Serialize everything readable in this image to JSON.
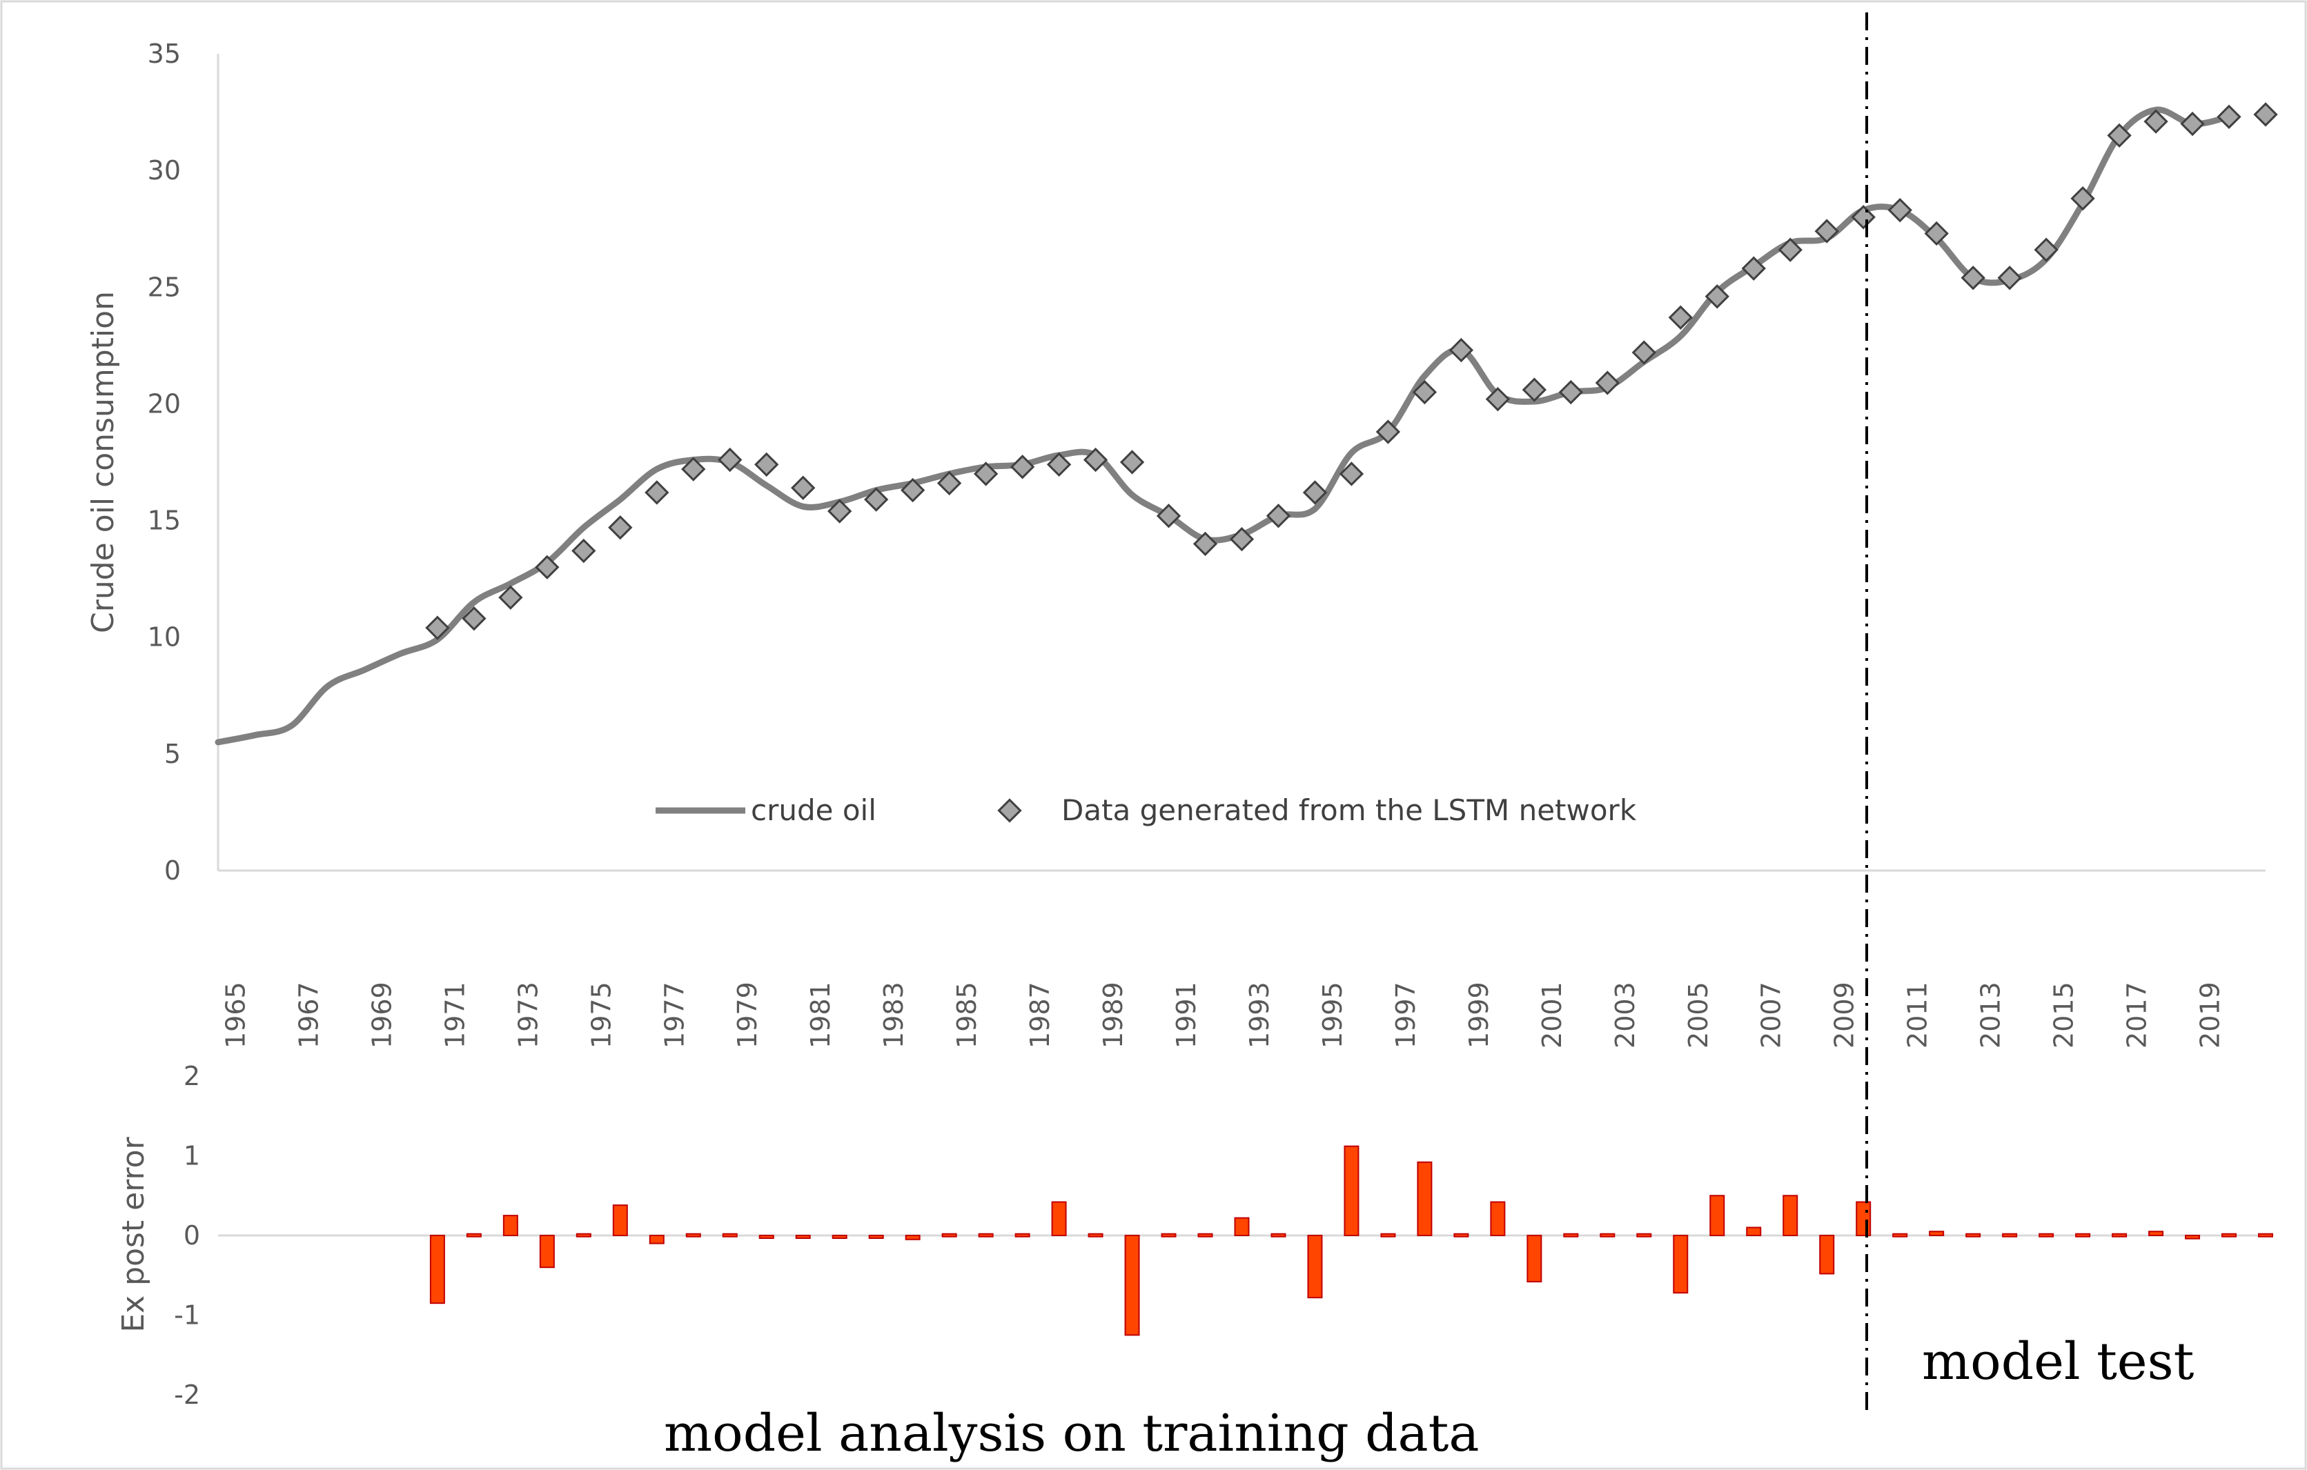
{
  "chart_data": [
    {
      "type": "line",
      "ylabel": "Crude oil consumption",
      "ylim": [
        0,
        35
      ],
      "yticks": [
        0,
        5,
        10,
        15,
        20,
        25,
        30,
        35
      ],
      "x": [
        1965,
        1966,
        1967,
        1968,
        1969,
        1970,
        1971,
        1972,
        1973,
        1974,
        1975,
        1976,
        1977,
        1978,
        1979,
        1980,
        1981,
        1982,
        1983,
        1984,
        1985,
        1986,
        1987,
        1988,
        1989,
        1990,
        1991,
        1992,
        1993,
        1994,
        1995,
        1996,
        1997,
        1998,
        1999,
        2000,
        2001,
        2002,
        2003,
        2004,
        2005,
        2006,
        2007,
        2008,
        2009,
        2010,
        2011,
        2012,
        2013,
        2014,
        2015,
        2016,
        2017,
        2018,
        2019,
        2020
      ],
      "xtick_labels": [
        "1965",
        "1967",
        "1969",
        "1971",
        "1973",
        "1975",
        "1977",
        "1979",
        "1981",
        "1983",
        "1985",
        "1987",
        "1989",
        "1991",
        "1993",
        "1995",
        "1997",
        "1999",
        "2001",
        "2003",
        "2005",
        "2007",
        "2009",
        "2011",
        "2013",
        "2015",
        "2017",
        "2019"
      ],
      "series": [
        {
          "name": "crude oil",
          "color": "#808080",
          "x": [
            1965,
            1966,
            1967,
            1968,
            1969,
            1970,
            1971,
            1972,
            1973,
            1974,
            1975,
            1976,
            1977,
            1978,
            1979,
            1980,
            1981,
            1982,
            1983,
            1984,
            1985,
            1986,
            1987,
            1988,
            1989,
            1990,
            1991,
            1992,
            1993,
            1994,
            1995,
            1996,
            1997,
            1998,
            1999,
            2000,
            2001,
            2002,
            2003,
            2004,
            2005,
            2006,
            2007,
            2008,
            2009,
            2010,
            2011,
            2012,
            2013,
            2014,
            2015,
            2016,
            2017,
            2018,
            2019,
            2020
          ],
          "values": [
            5.5,
            5.8,
            6.2,
            7.9,
            8.6,
            9.3,
            9.9,
            11.5,
            12.3,
            13.2,
            14.7,
            15.9,
            17.2,
            17.6,
            17.5,
            16.5,
            15.6,
            15.8,
            16.3,
            16.6,
            17.0,
            17.3,
            17.4,
            17.8,
            17.8,
            16.1,
            15.2,
            14.2,
            14.4,
            15.2,
            15.5,
            17.9,
            18.8,
            21.2,
            22.3,
            20.4,
            20.1,
            20.5,
            20.7,
            21.8,
            22.9,
            24.8,
            25.9,
            26.9,
            27.1,
            28.3,
            28.3,
            27.1,
            25.4,
            25.3,
            26.2,
            28.6,
            31.5,
            32.6,
            32.0,
            32.3
          ]
        },
        {
          "name": "Data generated from the LSTM network",
          "color": "#808080",
          "x": [
            1971,
            1972,
            1973,
            1974,
            1975,
            1976,
            1977,
            1978,
            1979,
            1980,
            1981,
            1982,
            1983,
            1984,
            1985,
            1986,
            1987,
            1988,
            1989,
            1990,
            1991,
            1992,
            1993,
            1994,
            1995,
            1996,
            1997,
            1998,
            1999,
            2000,
            2001,
            2002,
            2003,
            2004,
            2005,
            2006,
            2007,
            2008,
            2009,
            2010,
            2011,
            2012,
            2013,
            2014,
            2015,
            2016,
            2017,
            2018,
            2019,
            2020,
            2021
          ],
          "values": [
            10.4,
            10.8,
            11.7,
            13.0,
            13.7,
            14.7,
            16.2,
            17.2,
            17.6,
            17.4,
            16.4,
            15.4,
            15.9,
            16.3,
            16.6,
            17.0,
            17.3,
            17.4,
            17.6,
            17.5,
            15.2,
            14.0,
            14.2,
            15.2,
            16.2,
            17.0,
            18.8,
            20.5,
            22.3,
            20.2,
            20.6,
            20.5,
            20.9,
            22.2,
            23.7,
            24.6,
            25.8,
            26.6,
            27.4,
            28.0,
            28.3,
            27.3,
            25.4,
            25.4,
            26.6,
            28.8,
            31.5,
            32.1,
            32.0,
            32.3,
            32.4
          ]
        }
      ],
      "legend": [
        "crude oil",
        "Data generated from the LSTM network"
      ],
      "legend_position": "bottom-inside"
    },
    {
      "type": "bar",
      "ylabel": "Ex post error",
      "ylim": [
        -2,
        2
      ],
      "yticks": [
        -2,
        -1,
        0,
        1,
        2
      ],
      "series": [
        {
          "name": "Ex post error",
          "color": "#FF4500",
          "x": [
            1971,
            1972,
            1973,
            1974,
            1975,
            1976,
            1977,
            1978,
            1979,
            1980,
            1981,
            1982,
            1983,
            1984,
            1985,
            1986,
            1987,
            1988,
            1989,
            1990,
            1991,
            1992,
            1993,
            1994,
            1995,
            1996,
            1997,
            1998,
            1999,
            2000,
            2001,
            2002,
            2003,
            2004,
            2005,
            2006,
            2007,
            2008,
            2009,
            2010,
            2011,
            2012,
            2013,
            2014,
            2015,
            2016,
            2017,
            2018,
            2019,
            2020,
            2021
          ],
          "values": [
            -0.85,
            0.02,
            0.25,
            -0.4,
            0.02,
            0.38,
            -0.1,
            0.02,
            0.02,
            -0.03,
            -0.02,
            -0.03,
            -0.03,
            -0.05,
            0.02,
            0.02,
            0.02,
            0.42,
            0.02,
            -1.25,
            0.02,
            0.02,
            0.22,
            0.02,
            -0.78,
            1.12,
            0.02,
            0.92,
            0.02,
            0.42,
            -0.58,
            0.02,
            0.02,
            0.02,
            -0.72,
            0.5,
            0.1,
            0.5,
            -0.48,
            0.42,
            0.02,
            0.05,
            0.02,
            0.02,
            0.02,
            0.02,
            0.02,
            0.05,
            -0.04,
            0.02,
            0.02
          ]
        }
      ]
    }
  ],
  "annotations": {
    "training": "model analysis on training data",
    "test": "model test"
  }
}
